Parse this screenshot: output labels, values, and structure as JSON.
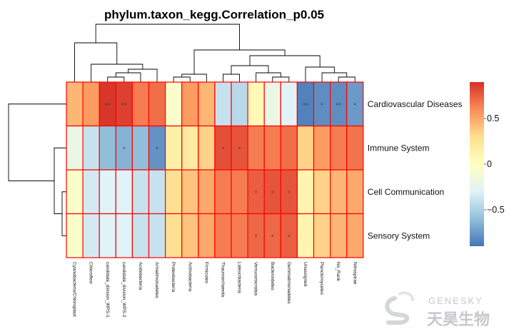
{
  "chart_data": {
    "type": "heatmap",
    "title": "phylum.taxon_kegg.Correlation_p0.05",
    "rows": [
      "Cardiovascular Diseases",
      "Immune System",
      "Cell Communication",
      "Sensory System"
    ],
    "columns": [
      "Cyanobacteria/Chloroplast",
      "Chloroflexi",
      "candidate_division_WPS-1",
      "candidate_division_WPS-2",
      "Acidobacteria",
      "Armatimonadetes",
      "Proteobacteria",
      "Actinobacteria",
      "Firmicutes",
      "Thaumarchaeota",
      "Latescibacteria",
      "Verrucomicrobia",
      "Bacteroidetes",
      "Gemmatimonadetes",
      "Unassigned",
      "Planctomycetes",
      "No_Rank",
      "Nitrospirae"
    ],
    "values": [
      [
        0.45,
        0.55,
        0.88,
        0.85,
        0.65,
        0.7,
        -0.05,
        0.55,
        0.45,
        -0.4,
        -0.45,
        0.05,
        -0.2,
        -0.3,
        -0.85,
        -0.8,
        -0.8,
        -0.75
      ],
      [
        -0.2,
        -0.4,
        -0.6,
        -0.65,
        -0.6,
        -0.78,
        0.15,
        0.2,
        0.35,
        0.8,
        0.78,
        0.65,
        0.65,
        0.7,
        0.35,
        0.55,
        0.65,
        0.68
      ],
      [
        -0.05,
        -0.35,
        -0.3,
        -0.3,
        -0.4,
        -0.4,
        0.3,
        0.4,
        0.5,
        0.65,
        0.65,
        0.75,
        0.78,
        0.78,
        0.1,
        0.35,
        0.45,
        0.5
      ],
      [
        -0.05,
        -0.35,
        -0.3,
        -0.3,
        -0.4,
        -0.4,
        0.3,
        0.4,
        0.5,
        0.65,
        0.65,
        0.72,
        0.72,
        0.75,
        0.1,
        0.35,
        0.45,
        0.5
      ]
    ],
    "significance": [
      [
        "",
        "",
        "**",
        "**",
        "",
        "",
        "",
        "",
        "",
        "",
        "",
        "",
        "",
        "",
        "**",
        "*",
        "**",
        "*"
      ],
      [
        "",
        "",
        "",
        "*",
        "",
        "*",
        "",
        "",
        "",
        "*",
        "*",
        "",
        "",
        "",
        "",
        "",
        "",
        ""
      ],
      [
        "",
        "",
        "",
        "",
        "",
        "",
        "",
        "",
        "",
        "",
        "",
        "*",
        "*",
        "*",
        "",
        "",
        "",
        ""
      ],
      [
        "",
        "",
        "",
        "",
        "",
        "",
        "",
        "",
        "",
        "",
        "",
        "*",
        "*",
        "*",
        "",
        "",
        "",
        ""
      ]
    ],
    "color_scale": {
      "range": [
        -0.9,
        0.9
      ],
      "ticks": [
        -0.5,
        0,
        0.5
      ],
      "tick_labels": [
        "−0.5",
        "0",
        "0.5"
      ],
      "colors": [
        "#4575b4",
        "#91bfdb",
        "#e0f3f8",
        "#ffffbf",
        "#fee090",
        "#fc8d59",
        "#d73027"
      ]
    },
    "grid_color": "#ff0000",
    "row_dendrogram": "left",
    "column_dendrogram": "top"
  },
  "watermark": {
    "brand_en": "GENESKY",
    "brand_cn": "天昊生物",
    "icon": "genesky-logo-icon"
  }
}
